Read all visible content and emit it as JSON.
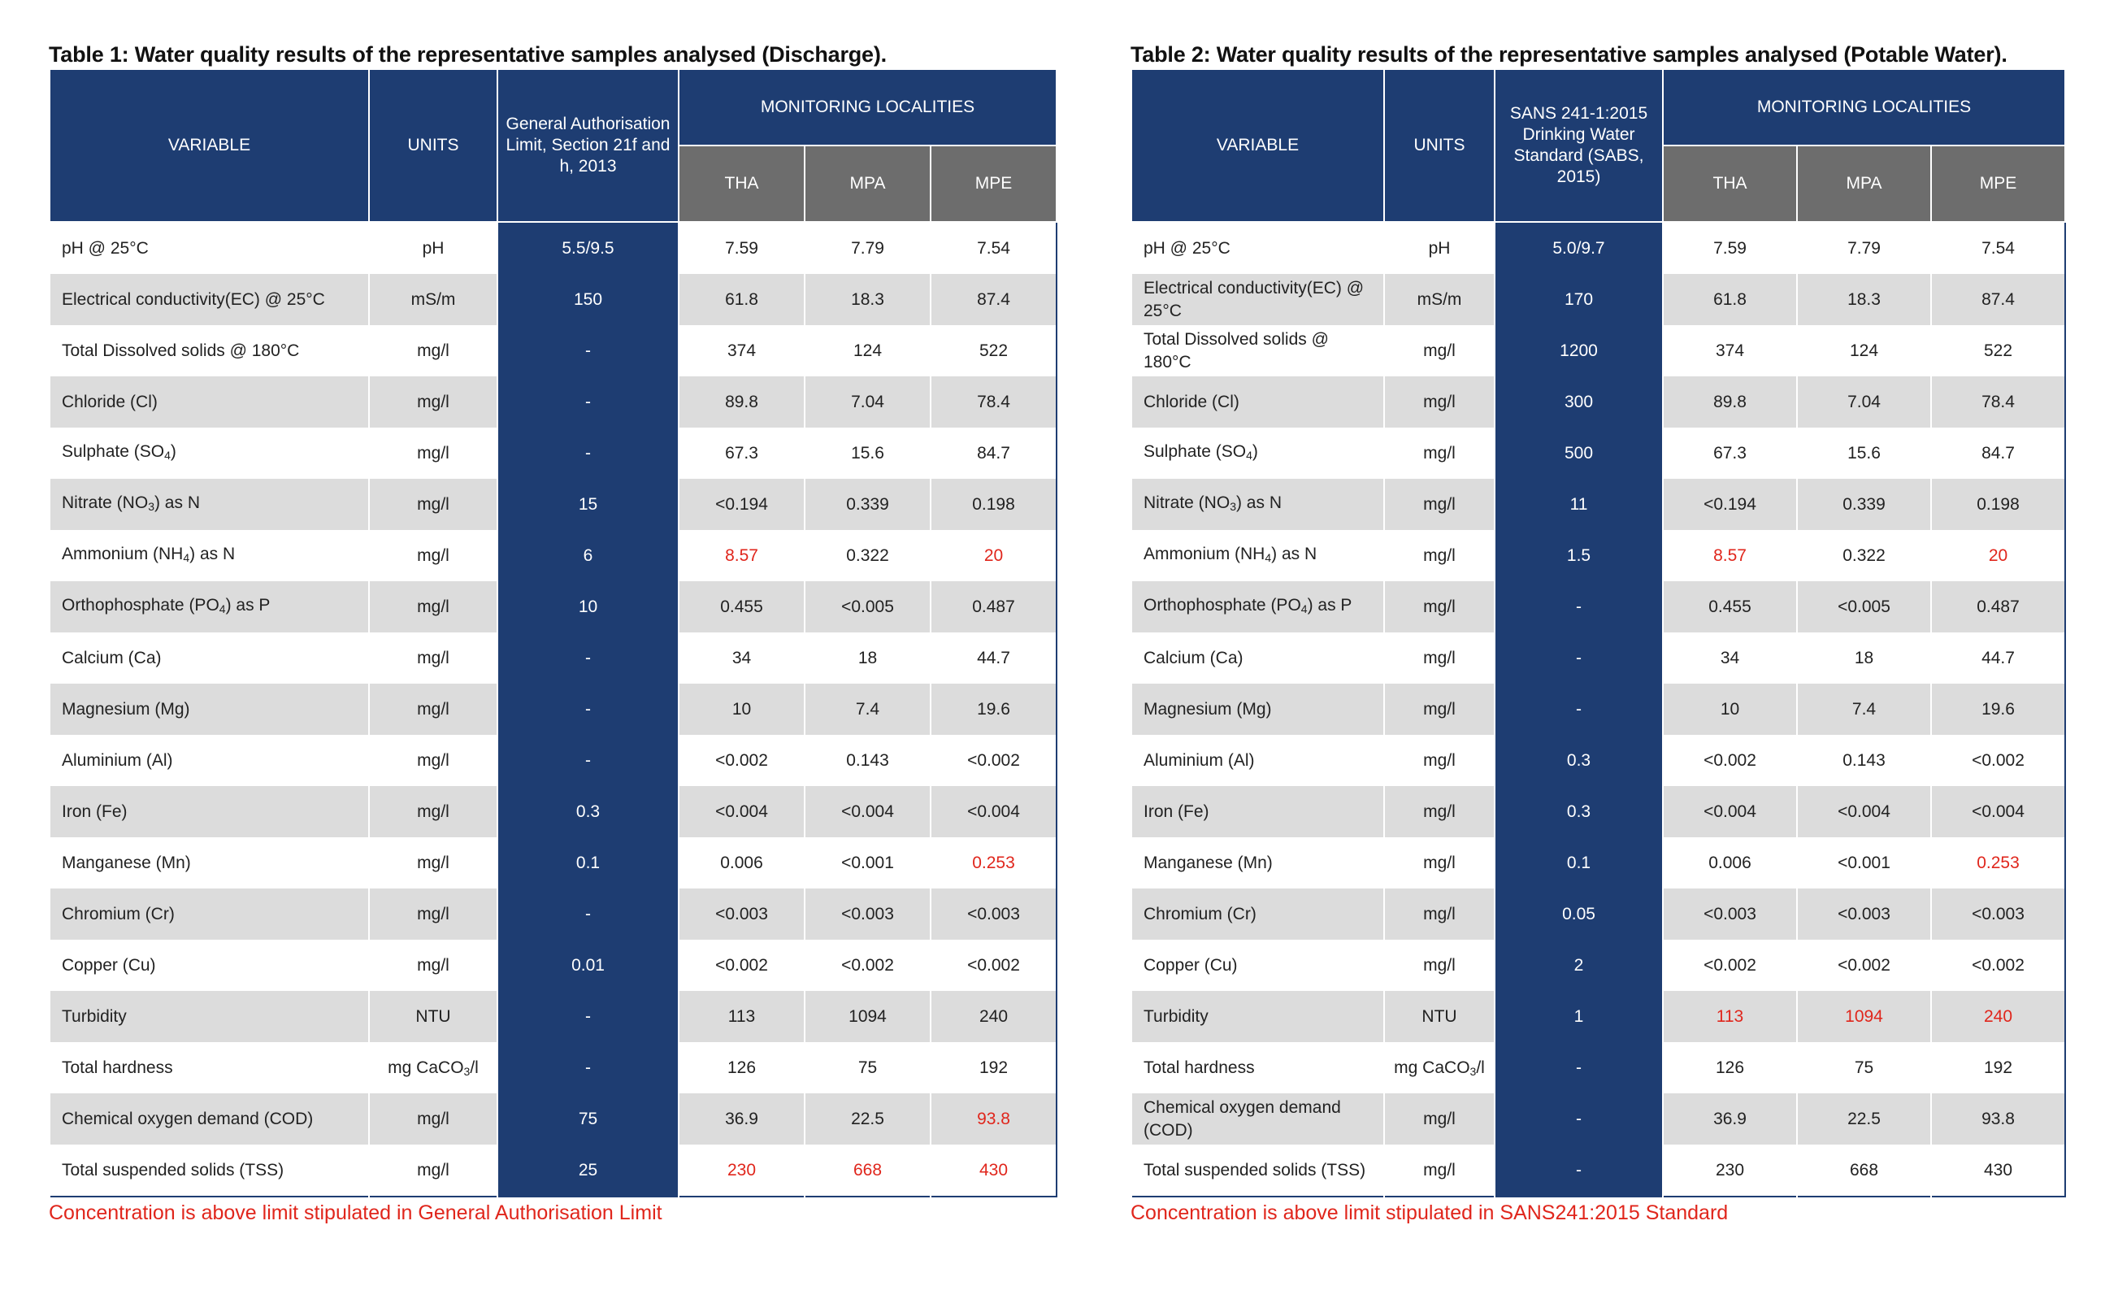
{
  "tables": [
    {
      "caption": "Table 1: Water quality results of the representative samples analysed (Discharge).",
      "headers": {
        "variable": "VARIABLE",
        "units": "UNITS",
        "limit": "General Authorisation Limit, Section 21f and h, 2013",
        "localities": "MONITORING LOCALITIES",
        "sites": [
          "THA",
          "MPA",
          "MPE"
        ]
      },
      "rows": [
        {
          "variable": "pH @ 25°C",
          "units": "pH",
          "limit": "5.5/9.5",
          "values": [
            "7.59",
            "7.79",
            "7.54"
          ],
          "exceed": [
            false,
            false,
            false
          ]
        },
        {
          "variable": "Electrical conductivity(EC) @ 25°C",
          "units": "mS/m",
          "limit": "150",
          "values": [
            "61.8",
            "18.3",
            "87.4"
          ],
          "exceed": [
            false,
            false,
            false
          ]
        },
        {
          "variable": "Total Dissolved solids @ 180°C",
          "units": "mg/l",
          "limit": "-",
          "values": [
            "374",
            "124",
            "522"
          ],
          "exceed": [
            false,
            false,
            false
          ]
        },
        {
          "variable": "Chloride (Cl)",
          "units": "mg/l",
          "limit": "-",
          "values": [
            "89.8",
            "7.04",
            "78.4"
          ],
          "exceed": [
            false,
            false,
            false
          ]
        },
        {
          "variable": "Sulphate (SO",
          "sub": "4",
          "suffix": ")",
          "units": "mg/l",
          "limit": "-",
          "values": [
            "67.3",
            "15.6",
            "84.7"
          ],
          "exceed": [
            false,
            false,
            false
          ]
        },
        {
          "variable": "Nitrate (NO",
          "sub": "3",
          "suffix": ") as N",
          "units": "mg/l",
          "limit": "15",
          "values": [
            "<0.194",
            "0.339",
            "0.198"
          ],
          "exceed": [
            false,
            false,
            false
          ]
        },
        {
          "variable": "Ammonium (NH",
          "sub": "4",
          "suffix": ") as N",
          "units": "mg/l",
          "limit": "6",
          "values": [
            "8.57",
            "0.322",
            "20"
          ],
          "exceed": [
            true,
            false,
            true
          ]
        },
        {
          "variable": "Orthophosphate (PO",
          "sub": "4",
          "suffix": ") as P",
          "units": "mg/l",
          "limit": "10",
          "values": [
            "0.455",
            "<0.005",
            "0.487"
          ],
          "exceed": [
            false,
            false,
            false
          ]
        },
        {
          "variable": "Calcium (Ca)",
          "units": "mg/l",
          "limit": "-",
          "values": [
            "34",
            "18",
            "44.7"
          ],
          "exceed": [
            false,
            false,
            false
          ]
        },
        {
          "variable": "Magnesium (Mg)",
          "units": "mg/l",
          "limit": "-",
          "values": [
            "10",
            "7.4",
            "19.6"
          ],
          "exceed": [
            false,
            false,
            false
          ]
        },
        {
          "variable": "Aluminium (Al)",
          "units": "mg/l",
          "limit": "-",
          "values": [
            "<0.002",
            "0.143",
            "<0.002"
          ],
          "exceed": [
            false,
            false,
            false
          ]
        },
        {
          "variable": "Iron (Fe)",
          "units": "mg/l",
          "limit": "0.3",
          "values": [
            "<0.004",
            "<0.004",
            "<0.004"
          ],
          "exceed": [
            false,
            false,
            false
          ]
        },
        {
          "variable": "Manganese (Mn)",
          "units": "mg/l",
          "limit": "0.1",
          "values": [
            "0.006",
            "<0.001",
            "0.253"
          ],
          "exceed": [
            false,
            false,
            true
          ]
        },
        {
          "variable": "Chromium (Cr)",
          "units": "mg/l",
          "limit": "-",
          "values": [
            "<0.003",
            "<0.003",
            "<0.003"
          ],
          "exceed": [
            false,
            false,
            false
          ]
        },
        {
          "variable": "Copper (Cu)",
          "units": "mg/l",
          "limit": "0.01",
          "values": [
            "<0.002",
            "<0.002",
            "<0.002"
          ],
          "exceed": [
            false,
            false,
            false
          ]
        },
        {
          "variable": "Turbidity",
          "units": "NTU",
          "limit": "-",
          "values": [
            "113",
            "1094",
            "240"
          ],
          "exceed": [
            false,
            false,
            false
          ]
        },
        {
          "variable": "Total hardness",
          "units": "mg CaCO",
          "units_sub": "3",
          "units_suffix": "/l",
          "limit": "-",
          "values": [
            "126",
            "75",
            "192"
          ],
          "exceed": [
            false,
            false,
            false
          ]
        },
        {
          "variable": "Chemical oxygen demand (COD)",
          "units": "mg/l",
          "limit": "75",
          "values": [
            "36.9",
            "22.5",
            "93.8"
          ],
          "exceed": [
            false,
            false,
            true
          ]
        },
        {
          "variable": "Total suspended solids (TSS)",
          "units": "mg/l",
          "limit": "25",
          "values": [
            "230",
            "668",
            "430"
          ],
          "exceed": [
            true,
            true,
            true
          ]
        }
      ],
      "note": "Concentration is above limit stipulated in General Authorisation Limit"
    },
    {
      "caption": "Table 2: Water quality results of the representative samples analysed (Potable Water).",
      "headers": {
        "variable": "VARIABLE",
        "units": "UNITS",
        "limit": "SANS 241-1:2015 Drinking Water Standard (SABS, 2015)",
        "localities": "MONITORING LOCALITIES",
        "sites": [
          "THA",
          "MPA",
          "MPE"
        ]
      },
      "rows": [
        {
          "variable": "pH @ 25°C",
          "units": "pH",
          "limit": "5.0/9.7",
          "values": [
            "7.59",
            "7.79",
            "7.54"
          ],
          "exceed": [
            false,
            false,
            false
          ]
        },
        {
          "variable": "Electrical conductivity(EC) @ 25°C",
          "units": "mS/m",
          "limit": "170",
          "values": [
            "61.8",
            "18.3",
            "87.4"
          ],
          "exceed": [
            false,
            false,
            false
          ]
        },
        {
          "variable": "Total Dissolved solids @ 180°C",
          "units": "mg/l",
          "limit": "1200",
          "values": [
            "374",
            "124",
            "522"
          ],
          "exceed": [
            false,
            false,
            false
          ]
        },
        {
          "variable": "Chloride (Cl)",
          "units": "mg/l",
          "limit": "300",
          "values": [
            "89.8",
            "7.04",
            "78.4"
          ],
          "exceed": [
            false,
            false,
            false
          ]
        },
        {
          "variable": "Sulphate (SO",
          "sub": "4",
          "suffix": ")",
          "units": "mg/l",
          "limit": "500",
          "values": [
            "67.3",
            "15.6",
            "84.7"
          ],
          "exceed": [
            false,
            false,
            false
          ]
        },
        {
          "variable": "Nitrate (NO",
          "sub": "3",
          "suffix": ") as N",
          "units": "mg/l",
          "limit": "11",
          "values": [
            "<0.194",
            "0.339",
            "0.198"
          ],
          "exceed": [
            false,
            false,
            false
          ]
        },
        {
          "variable": "Ammonium (NH",
          "sub": "4",
          "suffix": ") as N",
          "units": "mg/l",
          "limit": "1.5",
          "values": [
            "8.57",
            "0.322",
            "20"
          ],
          "exceed": [
            true,
            false,
            true
          ]
        },
        {
          "variable": "Orthophosphate (PO",
          "sub": "4",
          "suffix": ") as P",
          "units": "mg/l",
          "limit": "-",
          "values": [
            "0.455",
            "<0.005",
            "0.487"
          ],
          "exceed": [
            false,
            false,
            false
          ]
        },
        {
          "variable": "Calcium (Ca)",
          "units": "mg/l",
          "limit": "-",
          "values": [
            "34",
            "18",
            "44.7"
          ],
          "exceed": [
            false,
            false,
            false
          ]
        },
        {
          "variable": "Magnesium (Mg)",
          "units": "mg/l",
          "limit": "-",
          "values": [
            "10",
            "7.4",
            "19.6"
          ],
          "exceed": [
            false,
            false,
            false
          ]
        },
        {
          "variable": "Aluminium (Al)",
          "units": "mg/l",
          "limit": "0.3",
          "values": [
            "<0.002",
            "0.143",
            "<0.002"
          ],
          "exceed": [
            false,
            false,
            false
          ]
        },
        {
          "variable": "Iron (Fe)",
          "units": "mg/l",
          "limit": "0.3",
          "values": [
            "<0.004",
            "<0.004",
            "<0.004"
          ],
          "exceed": [
            false,
            false,
            false
          ]
        },
        {
          "variable": "Manganese (Mn)",
          "units": "mg/l",
          "limit": "0.1",
          "values": [
            "0.006",
            "<0.001",
            "0.253"
          ],
          "exceed": [
            false,
            false,
            true
          ]
        },
        {
          "variable": "Chromium (Cr)",
          "units": "mg/l",
          "limit": "0.05",
          "values": [
            "<0.003",
            "<0.003",
            "<0.003"
          ],
          "exceed": [
            false,
            false,
            false
          ]
        },
        {
          "variable": "Copper (Cu)",
          "units": "mg/l",
          "limit": "2",
          "values": [
            "<0.002",
            "<0.002",
            "<0.002"
          ],
          "exceed": [
            false,
            false,
            false
          ]
        },
        {
          "variable": "Turbidity",
          "units": "NTU",
          "limit": "1",
          "values": [
            "113",
            "1094",
            "240"
          ],
          "exceed": [
            true,
            true,
            true
          ]
        },
        {
          "variable": "Total hardness",
          "units": "mg CaCO",
          "units_sub": "3",
          "units_suffix": "/l",
          "limit": "-",
          "values": [
            "126",
            "75",
            "192"
          ],
          "exceed": [
            false,
            false,
            false
          ]
        },
        {
          "variable": "Chemical oxygen demand (COD)",
          "units": "mg/l",
          "limit": "-",
          "values": [
            "36.9",
            "22.5",
            "93.8"
          ],
          "exceed": [
            false,
            false,
            false
          ]
        },
        {
          "variable": "Total suspended solids (TSS)",
          "units": "mg/l",
          "limit": "-",
          "values": [
            "230",
            "668",
            "430"
          ],
          "exceed": [
            false,
            false,
            false
          ]
        }
      ],
      "note": "Concentration is above limit stipulated in SANS241:2015 Standard"
    }
  ],
  "colors": {
    "header_blue": "#1e3d72",
    "header_grey": "#6d6d6d",
    "row_alt": "#dcdcdc",
    "exceed_red": "#e0261c"
  }
}
